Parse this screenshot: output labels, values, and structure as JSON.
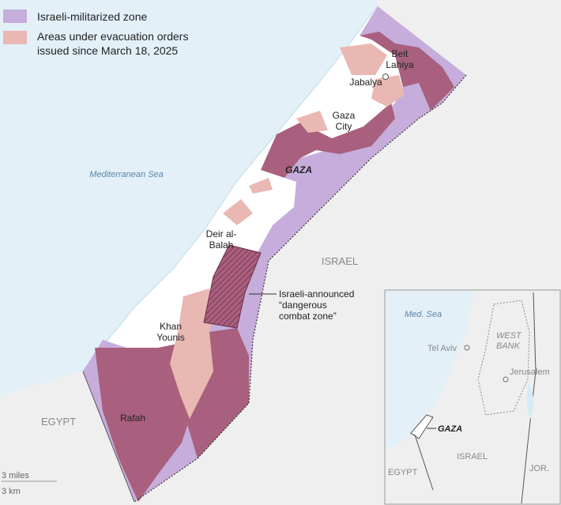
{
  "legend": [
    {
      "lines": [
        "Israeli-militarized zone"
      ]
    },
    {
      "lines": [
        "Areas under evacuation orders",
        "issued since March 18, 2025"
      ]
    }
  ],
  "places": {
    "beit_lahiya": [
      "Beit",
      "Lahiya"
    ],
    "jabalya": [
      "Jabalya"
    ],
    "gaza_city": [
      "Gaza",
      "City"
    ],
    "gaza": [
      "GAZA"
    ],
    "deir_al_balah": [
      "Deir al-",
      "Balah"
    ],
    "khan_younis": [
      "Khan",
      "Younis"
    ],
    "rafah": [
      "Rafah"
    ],
    "mediterranean_sea": [
      "Mediterranean Sea"
    ],
    "israel": [
      "ISRAEL"
    ],
    "egypt": [
      "EGYPT"
    ]
  },
  "annotation": [
    "Israeli-announced",
    "“dangerous",
    "combat zone”"
  ],
  "inset": {
    "med_sea": "Med. Sea",
    "tel_aviv": "Tel Aviv",
    "west_bank": [
      "WEST",
      "BANK"
    ],
    "jerusalem": "Jerusalem",
    "gaza": "GAZA",
    "israel": "ISRAEL",
    "egypt": "EGYPT",
    "jordan": "JOR."
  },
  "scale": {
    "miles": "3 miles",
    "km": "3 km"
  }
}
